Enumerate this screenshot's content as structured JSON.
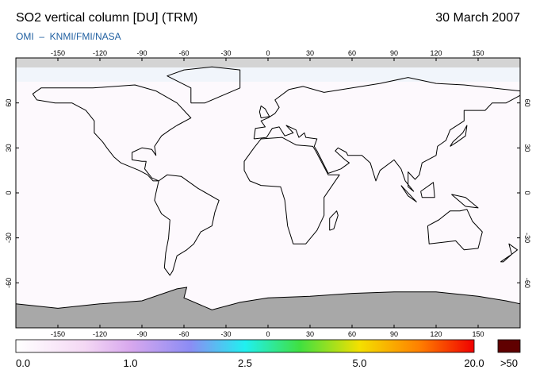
{
  "header": {
    "title": "SO2 vertical column [DU] (TRM)",
    "date": "30 March 2007",
    "subtitle": "OMI  –  KNMI/FMI/NASA"
  },
  "map": {
    "lon_ticks": [
      -150,
      -120,
      -90,
      -60,
      -30,
      0,
      30,
      60,
      90,
      120,
      150
    ],
    "lat_ticks": [
      60,
      30,
      0,
      -30,
      -60
    ]
  },
  "colorbar": {
    "labels": [
      "0.0",
      "1.0",
      "2.5",
      "5.0",
      "20.0"
    ],
    "overflow_label": ">50"
  }
}
